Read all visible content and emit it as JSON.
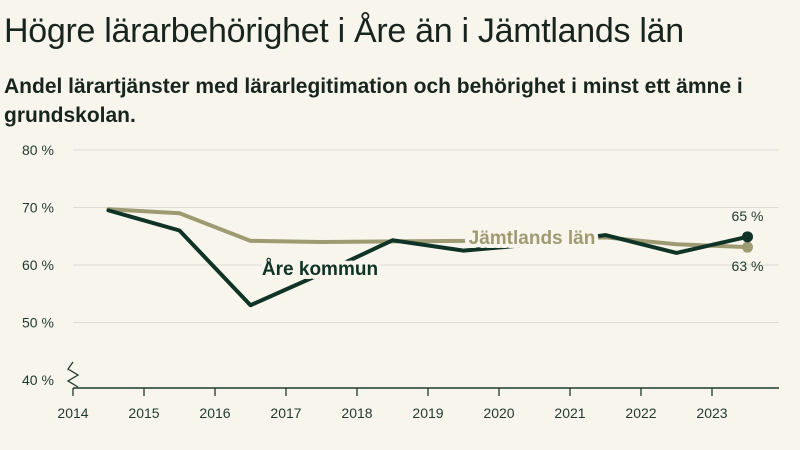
{
  "header": {
    "title": "Högre lärarbehörighet i Åre än i Jämtlands län",
    "subtitle": "Andel lärartjänster med lärarlegitimation och behörighet i minst ett ämne i grundskolan."
  },
  "chart_data": {
    "type": "line",
    "title": "Högre lärarbehörighet i Åre än i Jämtlands län",
    "subtitle": "Andel lärartjänster med lärarlegitimation och behörighet i minst ett ämne i grundskolan.",
    "x_ticks": [
      "2014",
      "2015",
      "2016",
      "2017",
      "2018",
      "2019",
      "2020",
      "2021",
      "2022",
      "2023"
    ],
    "y_ticks": [
      40,
      50,
      60,
      70,
      80
    ],
    "y_tick_labels": [
      "40 %",
      "50 %",
      "60 %",
      "70 %",
      "80 %"
    ],
    "ylim": [
      40,
      80
    ],
    "xlim": [
      2014,
      2024
    ],
    "axis_break": true,
    "series": [
      {
        "name": "Jämtlands län",
        "color": "#9e9a72",
        "x": [
          2014.5,
          2015.5,
          2016.5,
          2017.5,
          2018.5,
          2019.5,
          2020.5,
          2021.5,
          2022.5,
          2023.5
        ],
        "values": [
          69.7,
          69.0,
          64.2,
          64.0,
          64.1,
          64.2,
          64.3,
          64.8,
          63.6,
          63.1
        ],
        "end_label": "63 %"
      },
      {
        "name": "Åre kommun",
        "color": "#0f3326",
        "x": [
          2014.5,
          2015.5,
          2016.5,
          2017.5,
          2018.5,
          2019.5,
          2020.5,
          2021.5,
          2022.5,
          2023.5
        ],
        "values": [
          69.5,
          66.0,
          53.0,
          58.5,
          64.3,
          62.5,
          63.6,
          65.2,
          62.1,
          64.9
        ],
        "end_label": "65 %"
      }
    ]
  }
}
